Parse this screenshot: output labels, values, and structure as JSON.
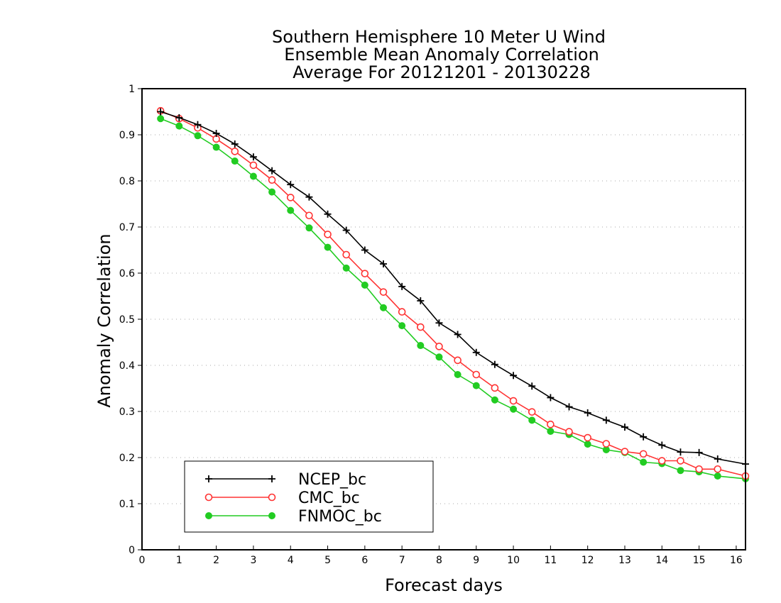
{
  "chart_data": {
    "type": "line",
    "title_lines": [
      "Southern Hemisphere 10 Meter U Wind",
      "Ensemble Mean Anomaly Correlation",
      "Average For 20121201 - 20130228"
    ],
    "xlabel": "Forecast days",
    "ylabel": "Anomaly Correlation",
    "xlim": [
      0,
      16.25
    ],
    "ylim": [
      0,
      1
    ],
    "x_ticks": [
      0,
      1,
      2,
      3,
      4,
      5,
      6,
      7,
      8,
      9,
      10,
      11,
      12,
      13,
      14,
      15,
      16
    ],
    "y_ticks": [
      0,
      0.1,
      0.2,
      0.3,
      0.4,
      0.5,
      0.6,
      0.7,
      0.8,
      0.9,
      1
    ],
    "grid": "horizontal-dotted",
    "legend_position": "bottom-left",
    "x": [
      0.5,
      1,
      1.5,
      2,
      2.5,
      3,
      3.5,
      4,
      4.5,
      5,
      5.5,
      6,
      6.5,
      7,
      7.5,
      8,
      8.5,
      9,
      9.5,
      10,
      10.5,
      11,
      11.5,
      12,
      12.5,
      13,
      13.5,
      14,
      14.5,
      15,
      15.5,
      16.25
    ],
    "series": [
      {
        "name": "NCEP_bc",
        "color": "#000000",
        "marker": "plus",
        "values": [
          0.95,
          0.937,
          0.922,
          0.903,
          0.88,
          0.852,
          0.822,
          0.792,
          0.765,
          0.728,
          0.693,
          0.65,
          0.62,
          0.571,
          0.54,
          0.492,
          0.467,
          0.428,
          0.402,
          0.378,
          0.355,
          0.33,
          0.31,
          0.297,
          0.281,
          0.266,
          0.245,
          0.227,
          0.212,
          0.211,
          0.197,
          0.186
        ]
      },
      {
        "name": "CMC_bc",
        "color": "#ff3333",
        "marker": "open-circle",
        "values": [
          0.952,
          0.935,
          0.915,
          0.891,
          0.864,
          0.834,
          0.802,
          0.764,
          0.725,
          0.684,
          0.64,
          0.599,
          0.559,
          0.516,
          0.483,
          0.441,
          0.411,
          0.38,
          0.351,
          0.323,
          0.299,
          0.272,
          0.256,
          0.243,
          0.23,
          0.213,
          0.208,
          0.193,
          0.193,
          0.175,
          0.175,
          0.16
        ]
      },
      {
        "name": "FNMOC_bc",
        "color": "#22cc22",
        "marker": "filled-circle",
        "values": [
          0.935,
          0.919,
          0.898,
          0.873,
          0.843,
          0.81,
          0.776,
          0.736,
          0.698,
          0.656,
          0.611,
          0.574,
          0.525,
          0.486,
          0.443,
          0.418,
          0.38,
          0.356,
          0.325,
          0.305,
          0.281,
          0.257,
          0.25,
          0.229,
          0.217,
          0.211,
          0.19,
          0.187,
          0.172,
          0.169,
          0.16,
          0.154
        ]
      }
    ]
  }
}
